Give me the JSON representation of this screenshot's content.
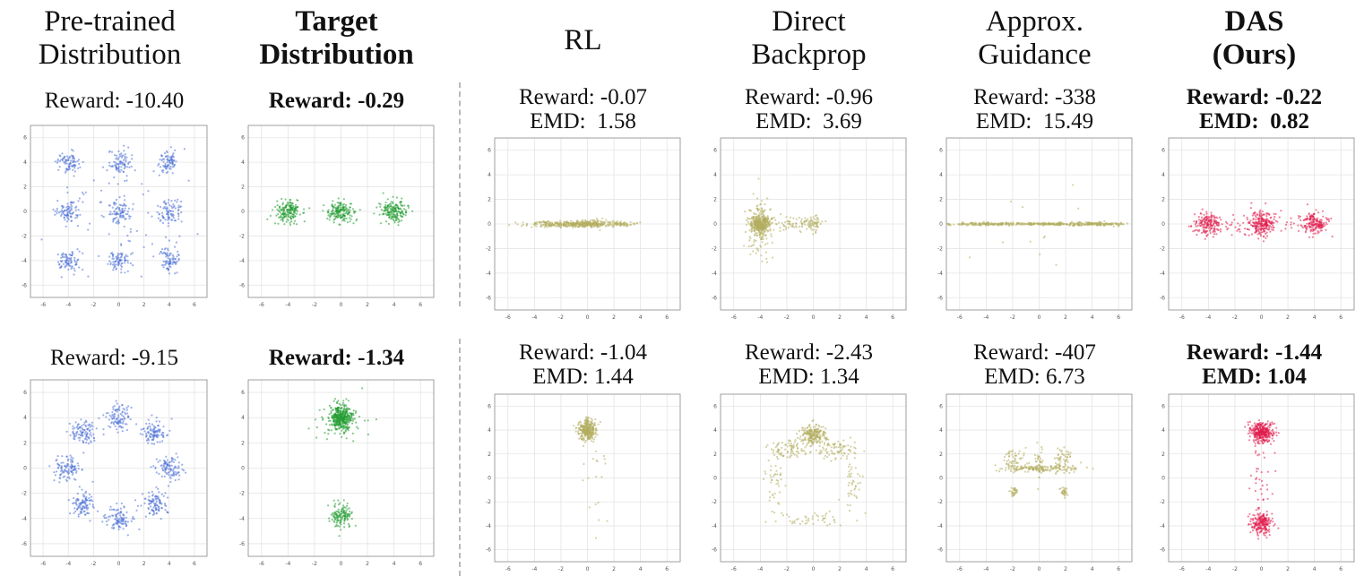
{
  "columns": [
    {
      "title_lines": [
        "Pre-trained",
        "Distribution"
      ],
      "bold": false
    },
    {
      "title_lines": [
        "Target",
        "Distribution"
      ],
      "bold": true
    },
    {
      "title_lines": [
        "RL"
      ],
      "bold": false
    },
    {
      "title_lines": [
        "Direct",
        "Backprop"
      ],
      "bold": false
    },
    {
      "title_lines": [
        "Approx.",
        "Guidance"
      ],
      "bold": false
    },
    {
      "title_lines": [
        "DAS",
        "(Ours)"
      ],
      "bold": true
    }
  ],
  "colors": {
    "pretrained": "#4a6fd6",
    "target": "#1f9a2e",
    "baseline": "#b3ad5f",
    "ours": "#e01a4a",
    "axis": "#888888",
    "grid": "#e4e4e4"
  },
  "chart_data": [
    {
      "type": "scatter",
      "row": 1,
      "column": "Pre-trained Distribution",
      "reward": "Reward: -10.40",
      "emd": null,
      "stats_bold": false,
      "xlim": [
        -7,
        7
      ],
      "ylim": [
        -7,
        7
      ],
      "xticks": [
        -6,
        -4,
        -2,
        0,
        2,
        4,
        6
      ],
      "yticks": [
        -6,
        -4,
        -2,
        0,
        2,
        4,
        6
      ],
      "grid": true,
      "series": [
        {
          "name": "samples",
          "color": "pretrained",
          "clusters": [
            {
              "cx": -4,
              "cy": 4,
              "sx": 0.45,
              "sy": 0.45,
              "n": 80
            },
            {
              "cx": 0,
              "cy": 4,
              "sx": 0.45,
              "sy": 0.45,
              "n": 80
            },
            {
              "cx": 4,
              "cy": 4,
              "sx": 0.45,
              "sy": 0.45,
              "n": 80
            },
            {
              "cx": -4,
              "cy": 0,
              "sx": 0.45,
              "sy": 0.45,
              "n": 80
            },
            {
              "cx": 0,
              "cy": 0,
              "sx": 0.45,
              "sy": 0.45,
              "n": 80
            },
            {
              "cx": 4,
              "cy": 0,
              "sx": 0.45,
              "sy": 0.45,
              "n": 80
            },
            {
              "cx": -4,
              "cy": -4,
              "sx": 0.45,
              "sy": 0.45,
              "n": 80
            },
            {
              "cx": 0,
              "cy": -4,
              "sx": 0.45,
              "sy": 0.45,
              "n": 80
            },
            {
              "cx": 4,
              "cy": -4,
              "sx": 0.45,
              "sy": 0.45,
              "n": 80
            },
            {
              "cx": 0,
              "cy": 0,
              "sx": 2.6,
              "sy": 2.6,
              "n": 70
            }
          ]
        }
      ]
    },
    {
      "type": "scatter",
      "row": 1,
      "column": "Target Distribution",
      "reward": "Reward: -0.29",
      "emd": null,
      "stats_bold": true,
      "xlim": [
        -7,
        7
      ],
      "ylim": [
        -7,
        7
      ],
      "xticks": [
        -6,
        -4,
        -2,
        0,
        2,
        4,
        6
      ],
      "yticks": [
        -6,
        -4,
        -2,
        0,
        2,
        4,
        6
      ],
      "grid": true,
      "series": [
        {
          "name": "samples",
          "color": "target",
          "clusters": [
            {
              "cx": -4,
              "cy": 0,
              "sx": 0.5,
              "sy": 0.45,
              "n": 170
            },
            {
              "cx": 0,
              "cy": 0,
              "sx": 0.5,
              "sy": 0.45,
              "n": 170
            },
            {
              "cx": 4,
              "cy": 0,
              "sx": 0.5,
              "sy": 0.45,
              "n": 170
            }
          ]
        }
      ]
    },
    {
      "type": "scatter",
      "row": 1,
      "column": "RL",
      "reward": "Reward: -0.07",
      "emd": "EMD:  1.58",
      "stats_bold": false,
      "xlim": [
        -7,
        7
      ],
      "ylim": [
        -7,
        7
      ],
      "xticks": [
        -6,
        -4,
        -2,
        0,
        2,
        4,
        6
      ],
      "yticks": [
        -6,
        -4,
        -2,
        0,
        2,
        4,
        6
      ],
      "grid": true,
      "series": [
        {
          "name": "samples",
          "color": "baseline",
          "clusters": [
            {
              "cx": -2.2,
              "cy": 0,
              "sx": 1.3,
              "sy": 0.12,
              "n": 200
            },
            {
              "cx": 0.2,
              "cy": 0,
              "sx": 0.8,
              "sy": 0.15,
              "n": 200
            },
            {
              "cx": 2.5,
              "cy": 0,
              "sx": 0.5,
              "sy": 0.08,
              "n": 60
            }
          ]
        }
      ]
    },
    {
      "type": "scatter",
      "row": 1,
      "column": "Direct Backprop",
      "reward": "Reward: -0.96",
      "emd": "EMD:  3.69",
      "stats_bold": false,
      "xlim": [
        -7,
        7
      ],
      "ylim": [
        -7,
        7
      ],
      "xticks": [
        -6,
        -4,
        -2,
        0,
        2,
        4,
        6
      ],
      "yticks": [
        -6,
        -4,
        -2,
        0,
        2,
        4,
        6
      ],
      "grid": true,
      "series": [
        {
          "name": "samples",
          "color": "baseline",
          "clusters": [
            {
              "cx": -4,
              "cy": 0,
              "sx": 0.35,
              "sy": 0.35,
              "n": 320
            },
            {
              "cx": -4,
              "cy": 0,
              "sx": 0.5,
              "sy": 1.4,
              "n": 140
            },
            {
              "cx": -1.5,
              "cy": 0,
              "sx": 1.2,
              "sy": 0.3,
              "n": 80
            },
            {
              "cx": 0,
              "cy": 0,
              "sx": 0.3,
              "sy": 0.3,
              "n": 50
            }
          ]
        }
      ]
    },
    {
      "type": "scatter",
      "row": 1,
      "column": "Approx. Guidance",
      "reward": "Reward: -338",
      "emd": "EMD:  15.49",
      "stats_bold": false,
      "xlim": [
        -7,
        7
      ],
      "ylim": [
        -7,
        7
      ],
      "xticks": [
        -6,
        -4,
        -2,
        0,
        2,
        4,
        6
      ],
      "yticks": [
        -6,
        -4,
        -2,
        0,
        2,
        4,
        6
      ],
      "grid": true,
      "series": [
        {
          "name": "samples",
          "color": "baseline",
          "clusters": [
            {
              "cx": -4,
              "cy": 0,
              "sx": 1.8,
              "sy": 0.06,
              "n": 170
            },
            {
              "cx": 0,
              "cy": 0,
              "sx": 1.2,
              "sy": 0.05,
              "n": 110
            },
            {
              "cx": 4,
              "cy": 0,
              "sx": 1.6,
              "sy": 0.07,
              "n": 200
            },
            {
              "cx": 0,
              "cy": 0,
              "sx": 3,
              "sy": 3,
              "n": 12
            }
          ]
        }
      ]
    },
    {
      "type": "scatter",
      "row": 1,
      "column": "DAS (Ours)",
      "reward": "Reward: -0.22",
      "emd": "EMD:  0.82",
      "stats_bold": true,
      "xlim": [
        -7,
        7
      ],
      "ylim": [
        -7,
        7
      ],
      "xticks": [
        -6,
        -4,
        -2,
        0,
        2,
        4,
        6
      ],
      "yticks": [
        -6,
        -4,
        -2,
        0,
        2,
        4,
        6
      ],
      "grid": true,
      "series": [
        {
          "name": "samples",
          "color": "ours",
          "clusters": [
            {
              "cx": -4,
              "cy": 0,
              "sx": 0.5,
              "sy": 0.45,
              "n": 160
            },
            {
              "cx": 0,
              "cy": 0,
              "sx": 0.5,
              "sy": 0.5,
              "n": 200
            },
            {
              "cx": 4,
              "cy": 0,
              "sx": 0.5,
              "sy": 0.45,
              "n": 160
            },
            {
              "cx": 0,
              "cy": 0,
              "sx": 2.4,
              "sy": 0.4,
              "n": 80
            }
          ]
        }
      ]
    },
    {
      "type": "scatter",
      "row": 2,
      "column": "Pre-trained Distribution",
      "reward": "Reward: -9.15",
      "emd": null,
      "stats_bold": false,
      "xlim": [
        -7,
        7
      ],
      "ylim": [
        -7,
        7
      ],
      "xticks": [
        -6,
        -4,
        -2,
        0,
        2,
        4,
        6
      ],
      "yticks": [
        -6,
        -4,
        -2,
        0,
        2,
        4,
        6
      ],
      "grid": true,
      "series": [
        {
          "name": "samples",
          "color": "pretrained",
          "clusters": [
            {
              "cx": 0,
              "cy": 4,
              "sx": 0.5,
              "sy": 0.5,
              "n": 100
            },
            {
              "cx": 2.83,
              "cy": 2.83,
              "sx": 0.5,
              "sy": 0.5,
              "n": 100
            },
            {
              "cx": 4,
              "cy": 0,
              "sx": 0.5,
              "sy": 0.5,
              "n": 100
            },
            {
              "cx": 2.83,
              "cy": -2.83,
              "sx": 0.5,
              "sy": 0.5,
              "n": 100
            },
            {
              "cx": 0,
              "cy": -4,
              "sx": 0.5,
              "sy": 0.5,
              "n": 100
            },
            {
              "cx": -2.83,
              "cy": -2.83,
              "sx": 0.5,
              "sy": 0.5,
              "n": 100
            },
            {
              "cx": -4,
              "cy": 0,
              "sx": 0.5,
              "sy": 0.5,
              "n": 100
            },
            {
              "cx": -2.83,
              "cy": 2.83,
              "sx": 0.5,
              "sy": 0.5,
              "n": 100
            }
          ]
        }
      ]
    },
    {
      "type": "scatter",
      "row": 2,
      "column": "Target Distribution",
      "reward": "Reward: -1.34",
      "emd": null,
      "stats_bold": true,
      "xlim": [
        -7,
        7
      ],
      "ylim": [
        -7,
        7
      ],
      "xticks": [
        -6,
        -4,
        -2,
        0,
        2,
        4,
        6
      ],
      "yticks": [
        -6,
        -4,
        -2,
        0,
        2,
        4,
        6
      ],
      "grid": true,
      "series": [
        {
          "name": "samples",
          "color": "target",
          "clusters": [
            {
              "cx": 0,
              "cy": 4,
              "sx": 0.45,
              "sy": 0.5,
              "n": 360
            },
            {
              "cx": 0,
              "cy": -3.8,
              "sx": 0.4,
              "sy": 0.45,
              "n": 130
            },
            {
              "cx": 0,
              "cy": 3.5,
              "sx": 1.3,
              "sy": 0.8,
              "n": 40
            }
          ]
        }
      ]
    },
    {
      "type": "scatter",
      "row": 2,
      "column": "RL",
      "reward": "Reward: -1.04",
      "emd": "EMD: 1.44",
      "stats_bold": false,
      "xlim": [
        -7,
        7
      ],
      "ylim": [
        -7,
        7
      ],
      "xticks": [
        -6,
        -4,
        -2,
        0,
        2,
        4,
        6
      ],
      "yticks": [
        -6,
        -4,
        -2,
        0,
        2,
        4,
        6
      ],
      "grid": true,
      "series": [
        {
          "name": "samples",
          "color": "baseline",
          "clusters": [
            {
              "cx": 0,
              "cy": 4,
              "sx": 0.3,
              "sy": 0.45,
              "n": 320
            },
            {
              "cx": 0.5,
              "cy": 0,
              "sx": 0.8,
              "sy": 2.4,
              "n": 20
            }
          ]
        }
      ]
    },
    {
      "type": "scatter",
      "row": 2,
      "column": "Direct Backprop",
      "reward": "Reward: -2.43",
      "emd": "EMD: 1.34",
      "stats_bold": false,
      "xlim": [
        -7,
        7
      ],
      "ylim": [
        -7,
        7
      ],
      "xticks": [
        -6,
        -4,
        -2,
        0,
        2,
        4,
        6
      ],
      "yticks": [
        -6,
        -4,
        -2,
        0,
        2,
        4,
        6
      ],
      "grid": true,
      "series": [
        {
          "name": "samples",
          "color": "baseline",
          "clusters": [
            {
              "cx": 0,
              "cy": 3.6,
              "sx": 0.5,
              "sy": 0.4,
              "n": 220
            },
            {
              "cx": -1.8,
              "cy": 2.4,
              "sx": 0.7,
              "sy": 0.4,
              "n": 80
            },
            {
              "cx": 1.8,
              "cy": 2.4,
              "sx": 0.7,
              "sy": 0.4,
              "n": 80
            },
            {
              "cx": -2.9,
              "cy": 0,
              "sx": 0.35,
              "sy": 1.1,
              "n": 40
            },
            {
              "cx": 2.9,
              "cy": 0,
              "sx": 0.35,
              "sy": 1.1,
              "n": 40
            },
            {
              "cx": 0,
              "cy": -3.4,
              "sx": 1.8,
              "sy": 0.4,
              "n": 50
            }
          ]
        }
      ]
    },
    {
      "type": "scatter",
      "row": 2,
      "column": "Approx. Guidance",
      "reward": "Reward: -407",
      "emd": "EMD: 6.73",
      "stats_bold": false,
      "xlim": [
        -7,
        7
      ],
      "ylim": [
        -7,
        7
      ],
      "xticks": [
        -6,
        -4,
        -2,
        0,
        2,
        4,
        6
      ],
      "yticks": [
        -6,
        -4,
        -2,
        0,
        2,
        4,
        6
      ],
      "grid": true,
      "series": [
        {
          "name": "samples",
          "color": "baseline",
          "clusters": [
            {
              "cx": 0,
              "cy": 0.8,
              "sx": 1.6,
              "sy": 0.15,
              "n": 160
            },
            {
              "cx": 0,
              "cy": 1.3,
              "sx": 0.15,
              "sy": 0.6,
              "n": 40
            },
            {
              "cx": -1.8,
              "cy": 1.6,
              "sx": 0.4,
              "sy": 0.4,
              "n": 50
            },
            {
              "cx": 1.8,
              "cy": 1.6,
              "sx": 0.4,
              "sy": 0.4,
              "n": 50
            },
            {
              "cx": -1.9,
              "cy": -1.2,
              "sx": 0.12,
              "sy": 0.2,
              "n": 30
            },
            {
              "cx": 1.9,
              "cy": -1.2,
              "sx": 0.12,
              "sy": 0.2,
              "n": 30
            }
          ]
        }
      ]
    },
    {
      "type": "scatter",
      "row": 2,
      "column": "DAS (Ours)",
      "reward": "Reward: -1.44",
      "emd": "EMD: 1.04",
      "stats_bold": true,
      "xlim": [
        -7,
        7
      ],
      "ylim": [
        -7,
        7
      ],
      "xticks": [
        -6,
        -4,
        -2,
        0,
        2,
        4,
        6
      ],
      "yticks": [
        -6,
        -4,
        -2,
        0,
        2,
        4,
        6
      ],
      "grid": true,
      "series": [
        {
          "name": "samples",
          "color": "ours",
          "clusters": [
            {
              "cx": 0,
              "cy": 3.8,
              "sx": 0.45,
              "sy": 0.45,
              "n": 300
            },
            {
              "cx": 0,
              "cy": -3.8,
              "sx": 0.4,
              "sy": 0.45,
              "n": 200
            },
            {
              "cx": 0,
              "cy": 0,
              "sx": 0.4,
              "sy": 2.2,
              "n": 40
            }
          ]
        }
      ]
    }
  ]
}
